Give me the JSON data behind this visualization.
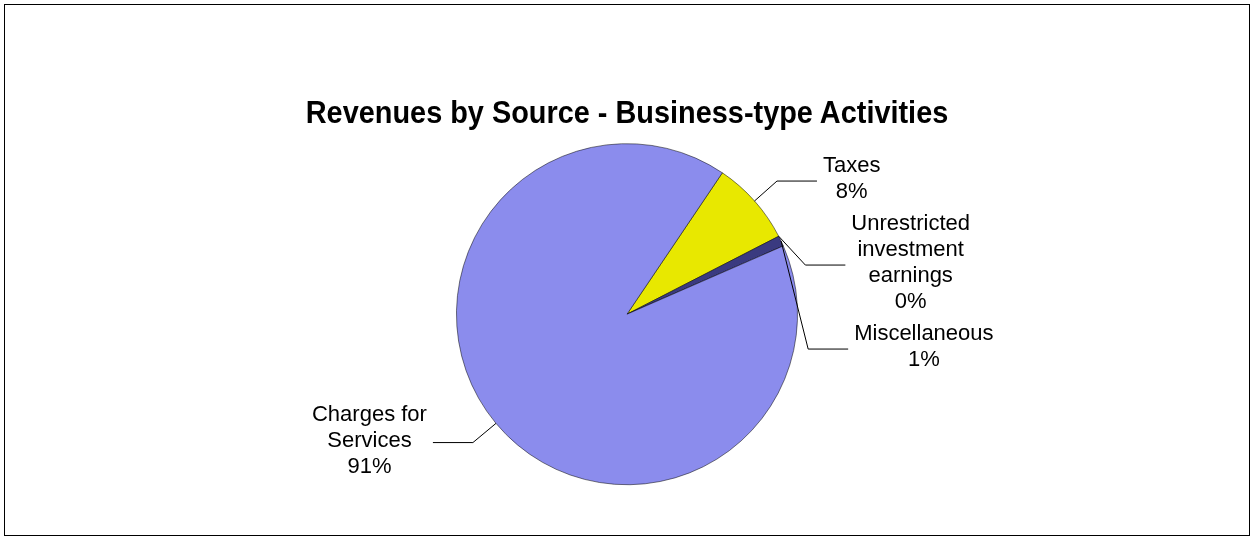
{
  "chart_data": {
    "type": "pie",
    "title": "Revenues by Source - Business-type Activities",
    "categories": [
      "Taxes",
      "Unrestricted investment earnings",
      "Miscellaneous",
      "Charges for Services"
    ],
    "values": [
      8,
      0,
      1,
      91
    ],
    "value_labels": [
      "8%",
      "0%",
      "1%",
      "91%"
    ],
    "colors": [
      "#e8e800",
      "#1a1a40",
      "#3a3a80",
      "#8b8ced"
    ]
  }
}
